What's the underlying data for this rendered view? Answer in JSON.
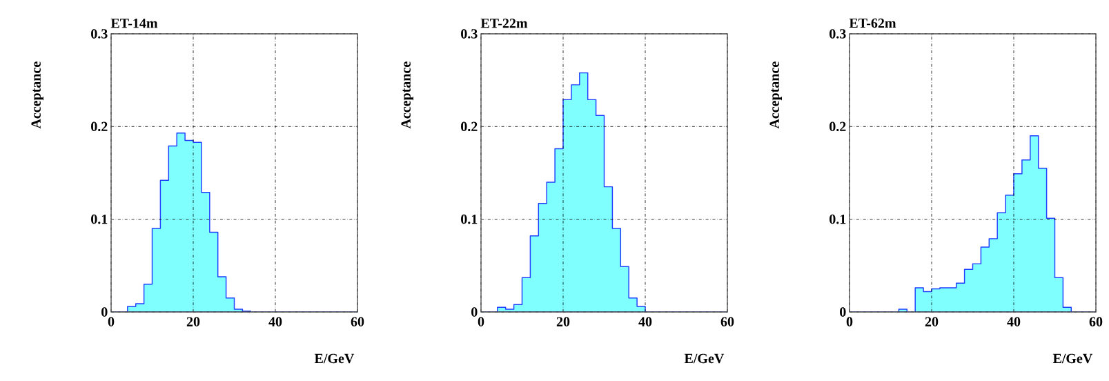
{
  "chart_data": [
    {
      "type": "histogram",
      "title": "ET-14m",
      "xlabel": "E/GeV",
      "ylabel": "Acceptance",
      "color": "#80ffff",
      "grid": true,
      "bins": [
        0,
        2,
        4,
        6,
        8,
        10,
        12,
        14,
        16,
        18,
        20,
        22,
        24,
        26,
        28,
        30,
        32,
        34,
        36,
        38,
        40,
        42,
        44,
        46,
        48,
        50,
        52,
        54,
        56,
        58,
        60
      ],
      "values": [
        0,
        0,
        0.006,
        0.009,
        0.03,
        0.09,
        0.142,
        0.179,
        0.193,
        0.185,
        0.183,
        0.129,
        0.086,
        0.038,
        0.015,
        0.003,
        0.001,
        0,
        0,
        0,
        0,
        0,
        0,
        0,
        0,
        0,
        0,
        0,
        0,
        0
      ],
      "xlim": [
        0,
        60
      ],
      "ylim": [
        0,
        0.3
      ],
      "xticks": [
        0,
        20,
        40,
        60
      ],
      "yticks": [
        0,
        0.1,
        0.2,
        0.3
      ]
    },
    {
      "type": "histogram",
      "title": "ET-22m",
      "xlabel": "E/GeV",
      "ylabel": "Acceptance",
      "color": "#80ffff",
      "grid": true,
      "bins": [
        0,
        2,
        4,
        6,
        8,
        10,
        12,
        14,
        16,
        18,
        20,
        22,
        24,
        26,
        28,
        30,
        32,
        34,
        36,
        38,
        40,
        42,
        44,
        46,
        48,
        50,
        52,
        54,
        56,
        58,
        60
      ],
      "values": [
        0,
        0,
        0.005,
        0.003,
        0.008,
        0.037,
        0.082,
        0.117,
        0.14,
        0.176,
        0.229,
        0.245,
        0.258,
        0.229,
        0.212,
        0.135,
        0.09,
        0.049,
        0.015,
        0.006,
        0,
        0,
        0,
        0,
        0,
        0,
        0,
        0,
        0,
        0
      ],
      "xlim": [
        0,
        60
      ],
      "ylim": [
        0,
        0.3
      ],
      "xticks": [
        0,
        20,
        40,
        60
      ],
      "yticks": [
        0,
        0.1,
        0.2,
        0.3
      ]
    },
    {
      "type": "histogram",
      "title": "ET-62m",
      "xlabel": "E/GeV",
      "ylabel": "Acceptance",
      "color": "#80ffff",
      "grid": true,
      "bins": [
        0,
        2,
        4,
        6,
        8,
        10,
        12,
        14,
        16,
        18,
        20,
        22,
        24,
        26,
        28,
        30,
        32,
        34,
        36,
        38,
        40,
        42,
        44,
        46,
        48,
        50,
        52,
        54,
        56,
        58,
        60
      ],
      "values": [
        0,
        0,
        0,
        0,
        0,
        0,
        0.003,
        0,
        0.026,
        0.022,
        0.025,
        0.026,
        0.026,
        0.031,
        0.046,
        0.052,
        0.07,
        0.079,
        0.107,
        0.126,
        0.149,
        0.164,
        0.19,
        0.155,
        0.101,
        0.037,
        0.005,
        0,
        0,
        0
      ],
      "xlim": [
        0,
        60
      ],
      "ylim": [
        0,
        0.3
      ],
      "xticks": [
        0,
        20,
        40,
        60
      ],
      "yticks": [
        0,
        0.1,
        0.2,
        0.3
      ]
    }
  ]
}
